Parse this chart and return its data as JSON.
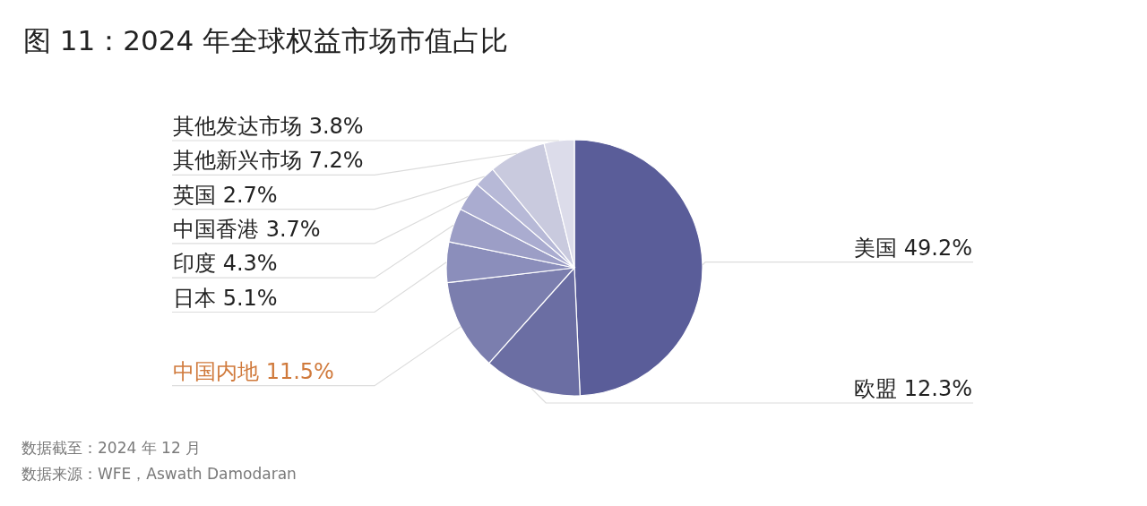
{
  "chart_data": {
    "type": "pie",
    "title": "图 11：2024 年全球权益市场市值占比",
    "categories": [
      "美国",
      "欧盟",
      "中国内地",
      "日本",
      "印度",
      "中国香港",
      "英国",
      "其他新兴市场",
      "其他发达市场"
    ],
    "values": [
      49.2,
      12.3,
      11.5,
      5.1,
      4.3,
      3.7,
      2.7,
      7.2,
      3.8
    ],
    "colors": [
      "#5a5d99",
      "#6b6ea3",
      "#7b7eae",
      "#8b8ebb",
      "#9c9ec6",
      "#aaacd0",
      "#b7b9d7",
      "#c9cade",
      "#dcdcea"
    ],
    "value_labels": [
      "49.2%",
      "12.3%",
      "11.5%",
      "5.1%",
      "4.3%",
      "3.7%",
      "2.7%",
      "7.2%",
      "3.8%"
    ],
    "annotations": [
      "数据截至：2024 年 12 月",
      "数据来源：WFE，Aswath Damodaran"
    ]
  }
}
